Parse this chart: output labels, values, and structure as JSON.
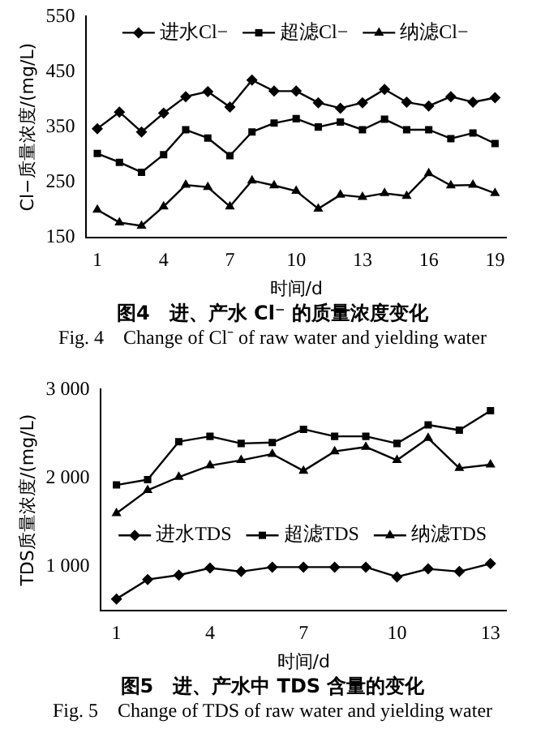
{
  "chart_data": [
    {
      "type": "line",
      "title": "图4　进、产水 Cl⁻ 的质量浓度变化",
      "subtitle": "Fig. 4　Change of Cl⁻ of raw water and yielding water",
      "xlabel": "时间/d",
      "ylabel": "Cl−质量浓度/(mg/L)",
      "x": [
        1,
        2,
        3,
        4,
        5,
        6,
        7,
        8,
        9,
        10,
        11,
        12,
        13,
        14,
        15,
        16,
        17,
        18,
        19
      ],
      "xlim": [
        0.5,
        19.5
      ],
      "xticks": [
        1,
        4,
        7,
        10,
        13,
        16,
        19
      ],
      "ylim": [
        150,
        550
      ],
      "yticks": [
        150,
        250,
        350,
        450,
        550
      ],
      "grid": false,
      "legend": "top",
      "series": [
        {
          "name": "进水Cl−",
          "color": "#000000",
          "marker": "diamond",
          "values": [
            347,
            377,
            341,
            375,
            405,
            414,
            386,
            435,
            415,
            415,
            394,
            384,
            394,
            418,
            395,
            388,
            405,
            395,
            403
          ]
        },
        {
          "name": "超滤Cl−",
          "color": "#000000",
          "marker": "square",
          "values": [
            302,
            286,
            268,
            300,
            345,
            330,
            298,
            341,
            357,
            365,
            350,
            359,
            345,
            364,
            345,
            345,
            329,
            339,
            320
          ]
        },
        {
          "name": "纳滤Cl−",
          "color": "#000000",
          "marker": "triangle",
          "values": [
            200,
            177,
            171,
            206,
            245,
            241,
            206,
            253,
            244,
            234,
            202,
            227,
            223,
            230,
            225,
            266,
            244,
            245,
            230
          ]
        }
      ]
    },
    {
      "type": "line",
      "title": "图5　进、产水中 TDS 含量的变化",
      "subtitle": "Fig. 5　Change of TDS of raw water and yielding water",
      "xlabel": "时间/d",
      "ylabel": "TDS质量浓度/(mg/L)",
      "x": [
        1,
        2,
        3,
        4,
        5,
        6,
        7,
        8,
        9,
        10,
        11,
        12,
        13
      ],
      "xlim": [
        0.5,
        13.5
      ],
      "xticks": [
        1,
        4,
        7,
        10,
        13
      ],
      "ylim": [
        500,
        3000
      ],
      "yticks": [
        {
          "value": 1000,
          "label": "1 000"
        },
        {
          "value": 2000,
          "label": "2 000"
        },
        {
          "value": 3000,
          "label": "3 000"
        }
      ],
      "grid": false,
      "legend": "center",
      "series": [
        {
          "name": "进水TDS",
          "color": "#000000",
          "marker": "diamond",
          "values": [
            630,
            850,
            900,
            980,
            940,
            990,
            990,
            990,
            990,
            880,
            970,
            940,
            1030
          ]
        },
        {
          "name": "超滤TDS",
          "color": "#000000",
          "marker": "square",
          "values": [
            1920,
            1980,
            2410,
            2470,
            2390,
            2400,
            2550,
            2470,
            2470,
            2390,
            2600,
            2540,
            2760
          ]
        },
        {
          "name": "纳滤TDS",
          "color": "#000000",
          "marker": "triangle",
          "values": [
            1600,
            1860,
            2010,
            2140,
            2200,
            2270,
            2080,
            2300,
            2350,
            2200,
            2450,
            2110,
            2150
          ]
        }
      ]
    }
  ]
}
